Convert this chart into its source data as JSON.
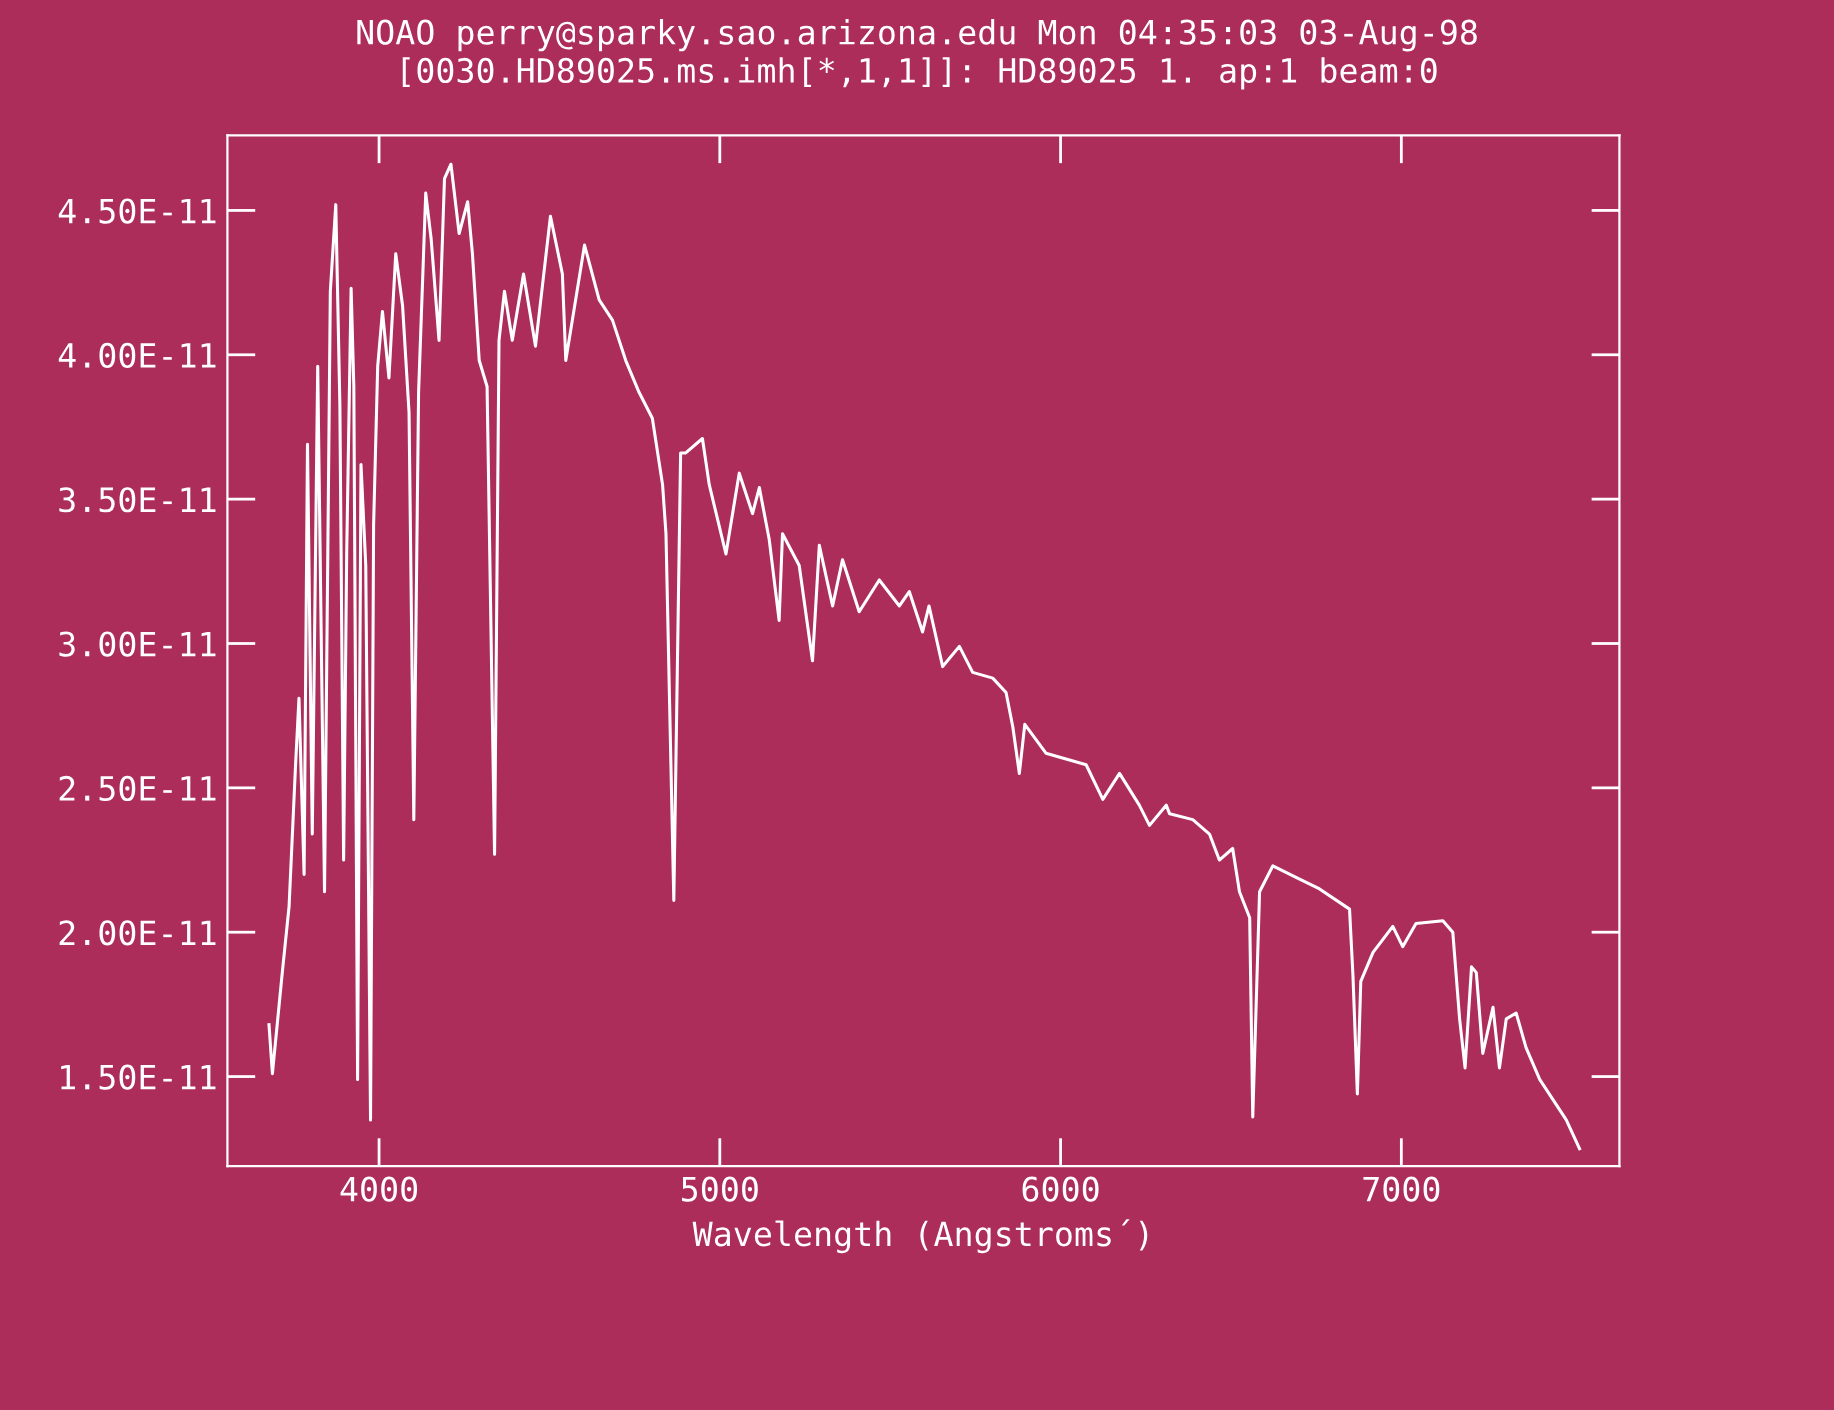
{
  "chart_data": {
    "type": "line",
    "title": "NOAO perry@sparky.sao.arizona.edu Mon 04:35:03 03-Aug-98",
    "subtitle": "[0030.HD89025.ms.imh[*,1,1]]: HD89025 1. ap:1 beam:0",
    "xlabel": "Wavelength (Angstroms´)",
    "x": [
      3677,
      3687,
      3716,
      3736,
      3755,
      3765,
      3780,
      3790,
      3804,
      3820,
      3840,
      3857,
      3873,
      3885,
      3896,
      3905,
      3918,
      3926,
      3937,
      3947,
      3961,
      3975,
      3984,
      3996,
      4010,
      4029,
      4049,
      4069,
      4088,
      4102,
      4116,
      4137,
      4153,
      4176,
      4192,
      4211,
      4235,
      4260,
      4274,
      4294,
      4317,
      4339,
      4352,
      4368,
      4391,
      4424,
      4459,
      4503,
      4538,
      4548,
      4603,
      4646,
      4685,
      4724,
      4763,
      4802,
      4832,
      4842,
      4865,
      4885,
      4900,
      4949,
      4969,
      5018,
      5057,
      5096,
      5116,
      5145,
      5174,
      5184,
      5233,
      5272,
      5292,
      5331,
      5360,
      5409,
      5468,
      5527,
      5556,
      5595,
      5614,
      5654,
      5703,
      5742,
      5801,
      5840,
      5860,
      5879,
      5895,
      5957,
      6016,
      6075,
      6124,
      6173,
      6231,
      6261,
      6310,
      6320,
      6388,
      6437,
      6466,
      6505,
      6525,
      6555,
      6564,
      6584,
      6623,
      6691,
      6760,
      6848,
      6858,
      6871,
      6881,
      6917,
      6975,
      7004,
      7043,
      7122,
      7151,
      7171,
      7187,
      7206,
      7220,
      7239,
      7269,
      7288,
      7308,
      7337,
      7366,
      7406,
      7445,
      7484,
      7523
    ],
    "series": [
      {
        "color": "#ffffff",
        "values": [
          1.68e-11,
          1.51e-11,
          1.86e-11,
          2.09e-11,
          2.58e-11,
          2.81e-11,
          2.2e-11,
          3.69e-11,
          2.34e-11,
          3.96e-11,
          2.14e-11,
          4.22e-11,
          4.52e-11,
          3.83e-11,
          2.25e-11,
          3.31e-11,
          4.23e-11,
          3.89e-11,
          1.49e-11,
          3.62e-11,
          3.27e-11,
          1.35e-11,
          3.41e-11,
          3.96e-11,
          4.15e-11,
          3.92e-11,
          4.35e-11,
          4.17e-11,
          3.8e-11,
          2.39e-11,
          3.87e-11,
          4.56e-11,
          4.4e-11,
          4.05e-11,
          4.61e-11,
          4.66e-11,
          4.42e-11,
          4.53e-11,
          4.35e-11,
          3.98e-11,
          3.89e-11,
          2.27e-11,
          4.05e-11,
          4.22e-11,
          4.05e-11,
          4.28e-11,
          4.03e-11,
          4.48e-11,
          4.28e-11,
          3.98e-11,
          4.38e-11,
          4.19e-11,
          4.12e-11,
          3.98e-11,
          3.87e-11,
          3.78e-11,
          3.55e-11,
          3.38e-11,
          2.11e-11,
          3.66e-11,
          3.66e-11,
          3.71e-11,
          3.55e-11,
          3.31e-11,
          3.59e-11,
          3.45e-11,
          3.54e-11,
          3.36e-11,
          3.08e-11,
          3.38e-11,
          3.27e-11,
          2.94e-11,
          3.34e-11,
          3.13e-11,
          3.29e-11,
          3.11e-11,
          3.22e-11,
          3.13e-11,
          3.18e-11,
          3.04e-11,
          3.13e-11,
          2.92e-11,
          2.99e-11,
          2.9e-11,
          2.88e-11,
          2.83e-11,
          2.71e-11,
          2.55e-11,
          2.72e-11,
          2.62e-11,
          2.6e-11,
          2.58e-11,
          2.46e-11,
          2.55e-11,
          2.44e-11,
          2.37e-11,
          2.44e-11,
          2.41e-11,
          2.39e-11,
          2.34e-11,
          2.25e-11,
          2.29e-11,
          2.14e-11,
          2.05e-11,
          1.36e-11,
          2.14e-11,
          2.23e-11,
          2.19e-11,
          2.15e-11,
          2.08e-11,
          1.85e-11,
          1.44e-11,
          1.83e-11,
          1.93e-11,
          2.02e-11,
          1.95e-11,
          2.03e-11,
          2.04e-11,
          2e-11,
          1.7e-11,
          1.53e-11,
          1.88e-11,
          1.86e-11,
          1.58e-11,
          1.74e-11,
          1.53e-11,
          1.7e-11,
          1.72e-11,
          1.6e-11,
          1.49e-11,
          1.42e-11,
          1.35e-11,
          1.25e-11
        ]
      }
    ],
    "xlim": [
      3555,
      7640
    ],
    "xticks": [
      4000,
      5000,
      6000,
      7000
    ],
    "ylim": [
      1.19e-11,
      4.76e-11
    ],
    "yticks": [
      {
        "value": 1.5e-11,
        "label": "1.50E-11"
      },
      {
        "value": 2e-11,
        "label": "2.00E-11"
      },
      {
        "value": 2.5e-11,
        "label": "2.50E-11"
      },
      {
        "value": 3e-11,
        "label": "3.00E-11"
      },
      {
        "value": 3.5e-11,
        "label": "3.50E-11"
      },
      {
        "value": 4e-11,
        "label": "4.00E-11"
      },
      {
        "value": 4.5e-11,
        "label": "4.50E-11"
      }
    ],
    "grid": false,
    "line_style": "solid",
    "marker": "none"
  }
}
